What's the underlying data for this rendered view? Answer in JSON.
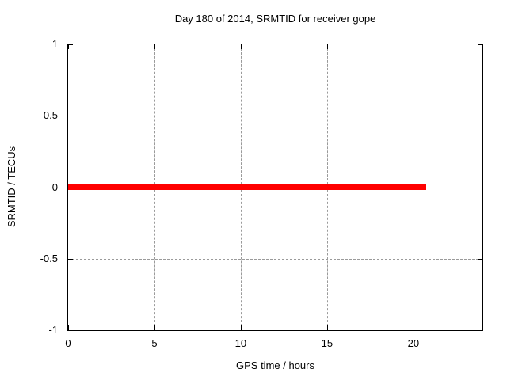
{
  "chart_data": {
    "type": "line",
    "title": "Day 180 of 2014, SRMTID for receiver gope",
    "xlabel": "GPS time / hours",
    "ylabel": "SRMTID / TECUs",
    "xlim": [
      0,
      24
    ],
    "ylim": [
      -1,
      1
    ],
    "xticks": [
      0,
      5,
      10,
      15,
      20
    ],
    "yticks": [
      -1,
      -0.5,
      0,
      0.5,
      1
    ],
    "grid": true,
    "grid_style": "dashed-gray",
    "legend_position": "none",
    "series": [
      {
        "name": "SRMTID",
        "color": "#ff0000",
        "linewidth": 7,
        "x": [
          0,
          20.75
        ],
        "y": [
          0,
          0
        ],
        "note": "flat zero line from 0 to ~20.75 GPS hours"
      }
    ]
  },
  "colors": {
    "background": "#ffffff",
    "border": "#000000",
    "grid": "#9a9a9a",
    "text": "#000000",
    "line": "#ff0000"
  }
}
